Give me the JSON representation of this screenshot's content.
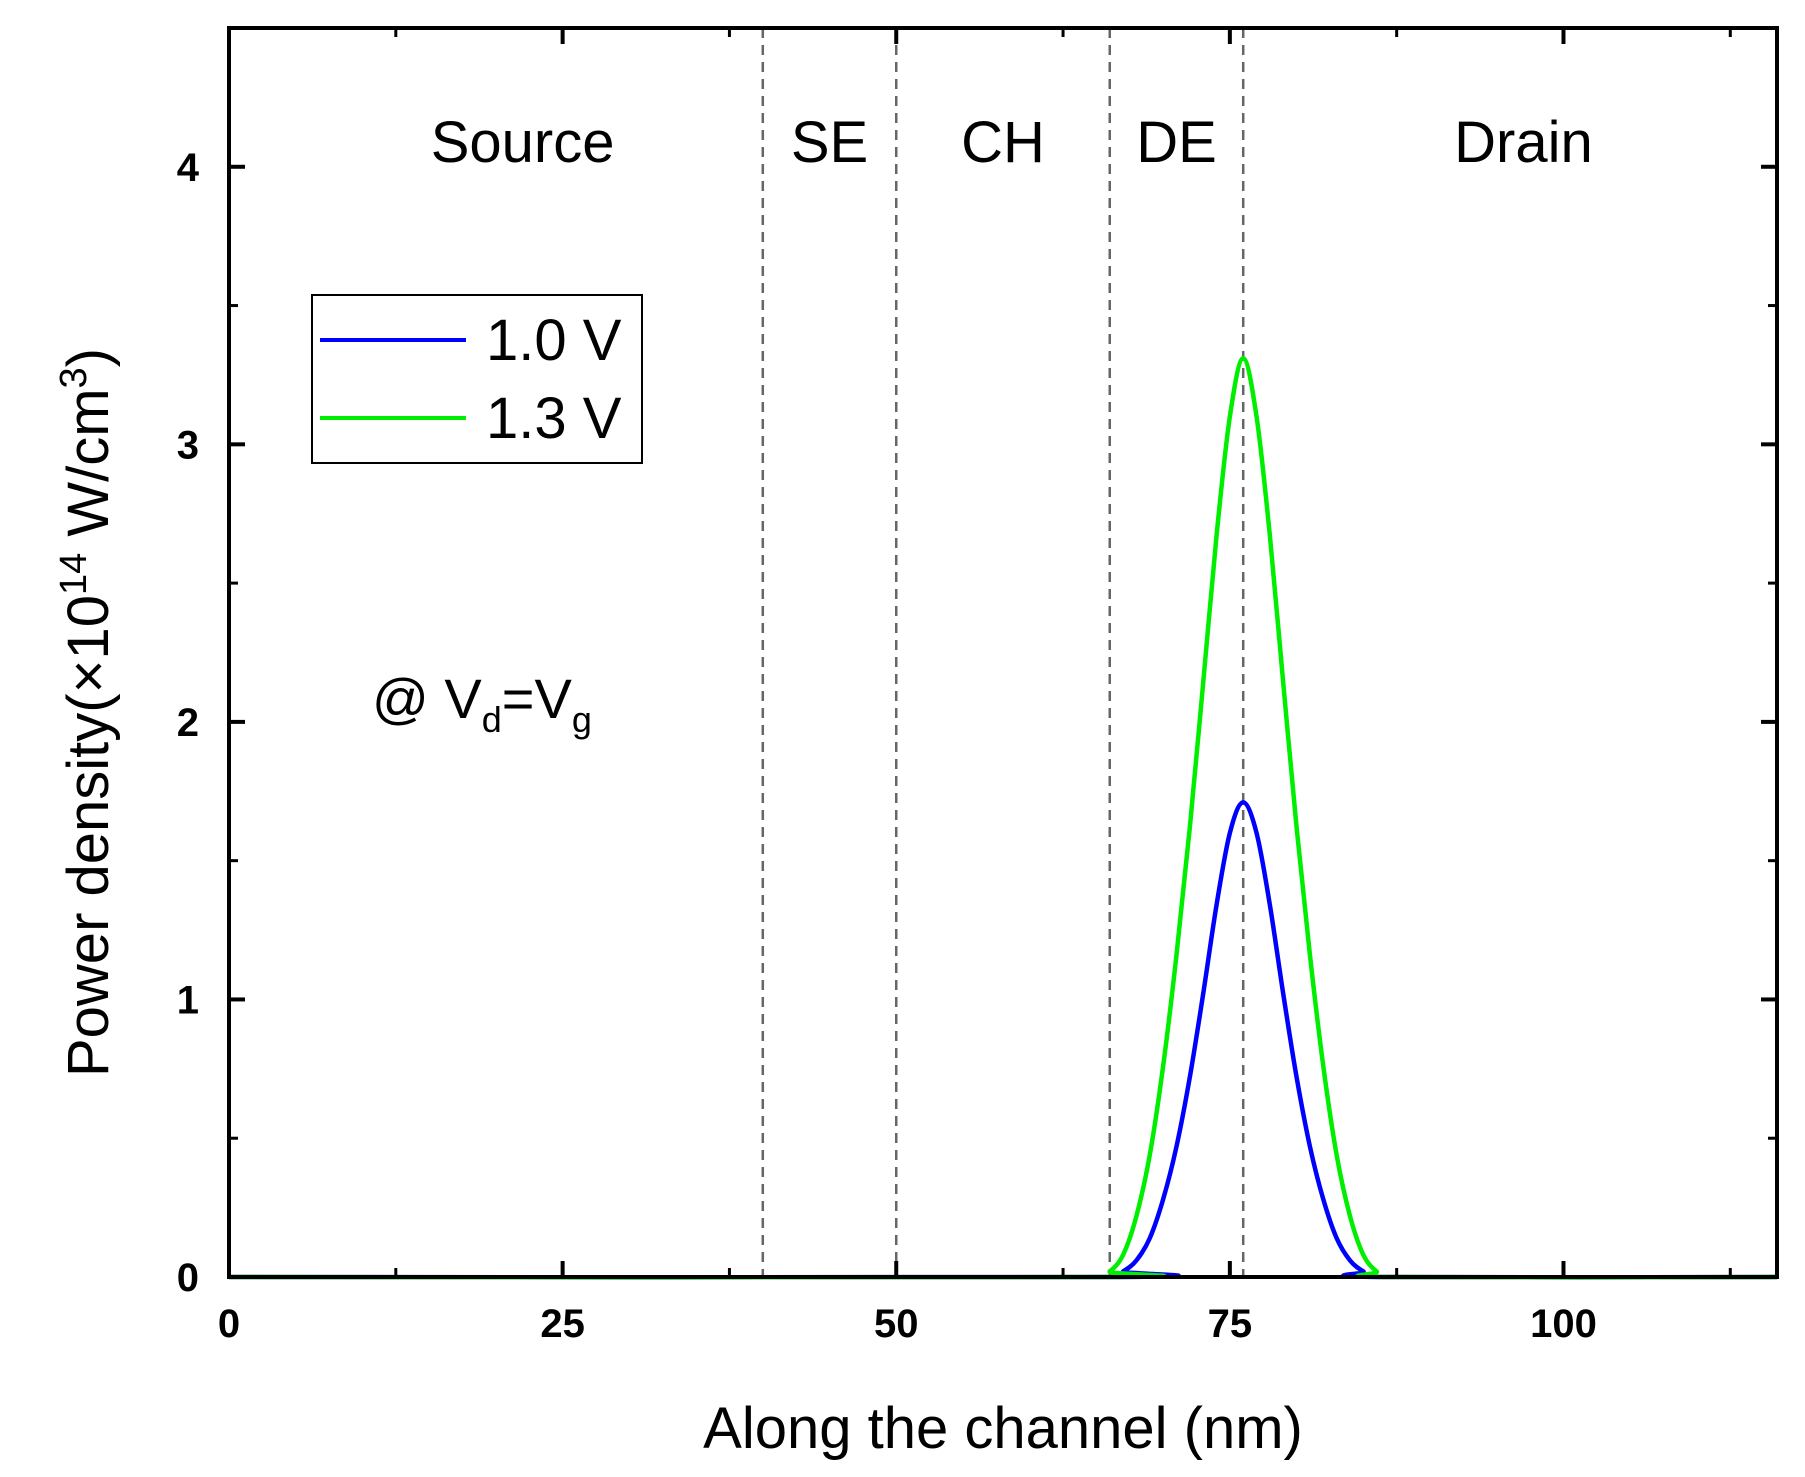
{
  "chart_data": {
    "type": "line",
    "title": "",
    "xlabel": "Along the channel (nm)",
    "ylabel": {
      "prefix": "Power density(",
      "times": "×10",
      "exp": "14",
      "unit": " W/cm",
      "unit_exp": "3",
      "suffix": ")"
    },
    "xlim": [
      0,
      116
    ],
    "ylim": [
      0,
      4.5
    ],
    "xticks": [
      0,
      25,
      50,
      75,
      100
    ],
    "xticks_minor": [
      12.5,
      37.5,
      62.5,
      87.5,
      112.5
    ],
    "yticks": [
      0,
      1,
      2,
      3,
      4
    ],
    "yticks_minor": [
      0.5,
      1.5,
      2.5,
      3.5
    ],
    "region_boundaries": [
      40,
      50,
      66,
      76
    ],
    "regions": [
      {
        "label": "Source",
        "x": 22
      },
      {
        "label": "SE",
        "x": 45
      },
      {
        "label": "CH",
        "x": 58
      },
      {
        "label": "DE",
        "x": 71
      },
      {
        "label": "Drain",
        "x": 97
      }
    ],
    "series": [
      {
        "name": "1.0 V",
        "color": "#0000ff",
        "peak_x": 76,
        "points": [
          [
            0,
            0
          ],
          [
            66,
            0
          ],
          [
            67,
            0.02
          ],
          [
            68,
            0.06
          ],
          [
            69,
            0.14
          ],
          [
            70,
            0.28
          ],
          [
            71,
            0.47
          ],
          [
            72,
            0.72
          ],
          [
            73,
            1.02
          ],
          [
            74,
            1.34
          ],
          [
            75,
            1.6
          ],
          [
            76,
            1.71
          ],
          [
            77,
            1.6
          ],
          [
            78,
            1.34
          ],
          [
            79,
            1.02
          ],
          [
            80,
            0.72
          ],
          [
            81,
            0.47
          ],
          [
            82,
            0.28
          ],
          [
            83,
            0.14
          ],
          [
            84,
            0.06
          ],
          [
            85,
            0.02
          ],
          [
            86,
            0
          ],
          [
            116,
            0
          ]
        ]
      },
      {
        "name": "1.3 V",
        "color": "#00ee00",
        "peak_x": 76,
        "points": [
          [
            0,
            0
          ],
          [
            65,
            0
          ],
          [
            66,
            0.02
          ],
          [
            67,
            0.08
          ],
          [
            68,
            0.22
          ],
          [
            69,
            0.44
          ],
          [
            70,
            0.76
          ],
          [
            71,
            1.16
          ],
          [
            72,
            1.62
          ],
          [
            73,
            2.14
          ],
          [
            74,
            2.67
          ],
          [
            75,
            3.1
          ],
          [
            76,
            3.31
          ],
          [
            77,
            3.1
          ],
          [
            78,
            2.67
          ],
          [
            79,
            2.14
          ],
          [
            80,
            1.62
          ],
          [
            81,
            1.16
          ],
          [
            82,
            0.76
          ],
          [
            83,
            0.44
          ],
          [
            84,
            0.22
          ],
          [
            85,
            0.08
          ],
          [
            86,
            0.02
          ],
          [
            87,
            0
          ],
          [
            116,
            0
          ]
        ]
      }
    ],
    "legend": {
      "position": "upper-left"
    },
    "annotation": {
      "prefix": "@ V",
      "sub1": "d",
      "mid": "=V",
      "sub2": "g"
    }
  }
}
